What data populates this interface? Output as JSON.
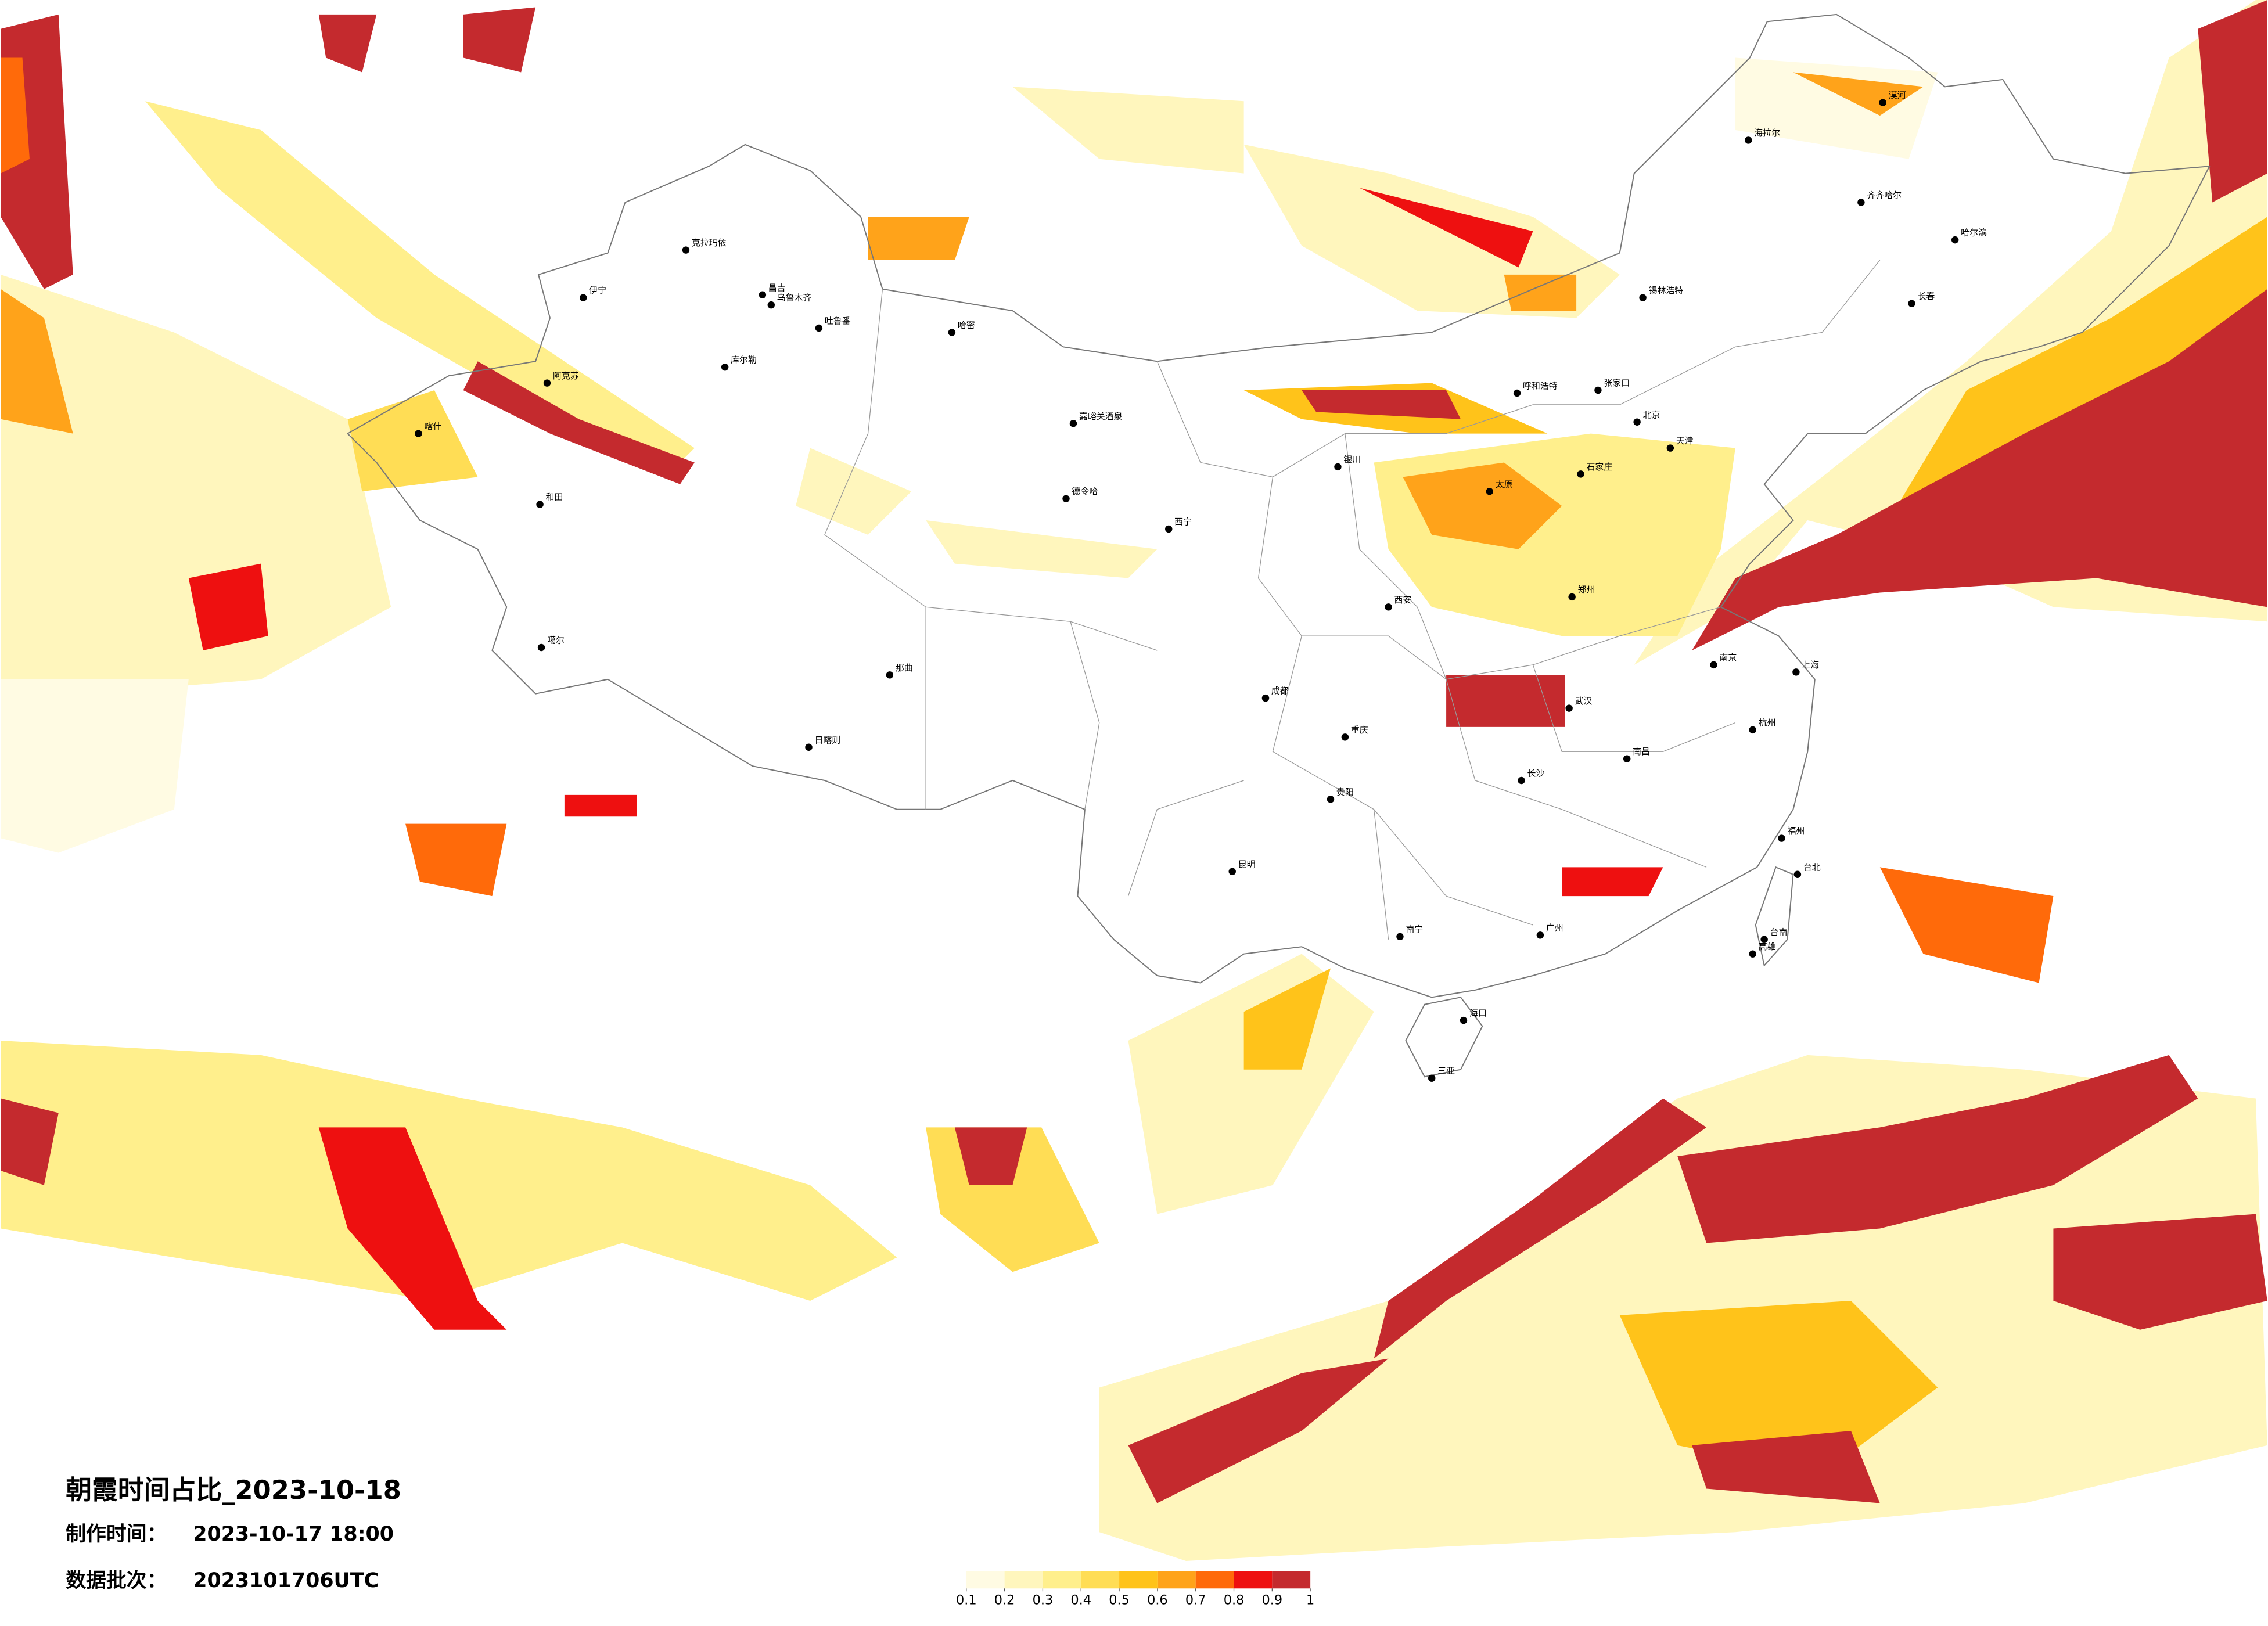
{
  "title": "朝霞时间占比_2023-10-18",
  "made_time": {
    "label": "制作时间：",
    "value": "2023-10-17 18:00"
  },
  "batch": {
    "label": "数据批次：",
    "value": "2023101706UTC"
  },
  "legend": {
    "colors": [
      "#fffbe3",
      "#fff6bd",
      "#ffef8c",
      "#ffdd55",
      "#ffc31a",
      "#ffa31a",
      "#ff6a0a",
      "#ee1010",
      "#c42a2e"
    ],
    "ticks": [
      0.1,
      0.2,
      0.3,
      0.4,
      0.5,
      0.6,
      0.7,
      0.8,
      0.9,
      1
    ]
  },
  "cities": [
    "克拉玛依",
    "伊宁",
    "昌吉",
    "乌鲁木齐",
    "吐鲁番",
    "哈密",
    "库尔勒",
    "阿克苏",
    "喀什",
    "和田",
    "噶尔",
    "日喀则",
    "那曲",
    "嘉峪关酒泉",
    "德令哈",
    "西宁",
    "银川",
    "呼和浩特",
    "张家口",
    "锡林浩特",
    "北京",
    "天津",
    "石家庄",
    "太原",
    "郑州",
    "西安",
    "武汉",
    "长沙",
    "南昌",
    "南京",
    "上海",
    "杭州",
    "福州",
    "台北",
    "台南",
    "高雄",
    "广州",
    "南宁",
    "海口",
    "三亚",
    "昆明",
    "贵阳",
    "成都",
    "重庆",
    "海拉尔",
    "齐齐哈尔",
    "哈尔滨",
    "长春",
    "漠河"
  ]
}
